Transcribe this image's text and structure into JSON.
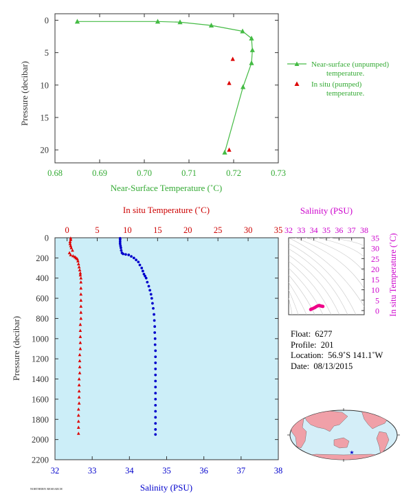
{
  "chart_data": [
    {
      "type": "line",
      "xlabel": "Near-Surface Temperature (˚C)",
      "ylabel": "Pressure (decibar)",
      "xlim": [
        0.68,
        0.73
      ],
      "ylim": [
        22,
        -1
      ],
      "x_ticks": [
        "0.68",
        "0.69",
        "0.70",
        "0.71",
        "0.72",
        "0.73"
      ],
      "y_ticks": [
        "0",
        "5",
        "10",
        "15",
        "20"
      ],
      "color_unpumped": "#44bb44",
      "color_pumped": "#dd0000",
      "series": [
        {
          "name": "Near-surface (unpumped) temperature.",
          "marker": "triangle-line",
          "points": [
            [
              0.685,
              0.2
            ],
            [
              0.703,
              0.2
            ],
            [
              0.708,
              0.3
            ],
            [
              0.715,
              0.8
            ],
            [
              0.722,
              1.7
            ],
            [
              0.724,
              2.8
            ],
            [
              0.7242,
              4.6
            ],
            [
              0.724,
              6.6
            ],
            [
              0.7221,
              10.3
            ],
            [
              0.718,
              20.4
            ]
          ]
        },
        {
          "name": "In situ (pumped) temperature.",
          "marker": "triangle",
          "points": [
            [
              0.7198,
              6.0
            ],
            [
              0.719,
              9.7
            ],
            [
              0.719,
              20.0
            ]
          ]
        }
      ],
      "legend": [
        "Near-surface (unpumped)",
        "temperature.",
        "In situ (pumped)",
        "temperature."
      ]
    },
    {
      "type": "scatter",
      "xlabel_top": "In situ Temperature (˚C)",
      "xlabel_bottom": "Salinity (PSU)",
      "ylabel": "Pressure (decibar)",
      "temp_lim": [
        -2,
        35
      ],
      "sal_lim": [
        32,
        38
      ],
      "ylim": [
        2200,
        0
      ],
      "temp_ticks": [
        "0",
        "5",
        "10",
        "15",
        "20",
        "25",
        "30",
        "35"
      ],
      "sal_ticks": [
        "32",
        "33",
        "34",
        "35",
        "36",
        "37",
        "38"
      ],
      "y_ticks": [
        "0",
        "200",
        "400",
        "600",
        "800",
        "1000",
        "1200",
        "1400",
        "1600",
        "1800",
        "2000",
        "2200"
      ],
      "temperature_color": "#dd0000",
      "salinity_color": "#0000cc",
      "background": "#cceef8",
      "temperature_profile": [
        [
          0.6,
          5
        ],
        [
          0.6,
          20
        ],
        [
          0.5,
          40
        ],
        [
          0.5,
          60
        ],
        [
          0.6,
          80
        ],
        [
          0.7,
          100
        ],
        [
          0.9,
          125
        ],
        [
          0.4,
          150
        ],
        [
          0.6,
          170
        ],
        [
          1.0,
          180
        ],
        [
          1.3,
          190
        ],
        [
          1.5,
          200
        ],
        [
          1.7,
          210
        ],
        [
          1.8,
          230
        ],
        [
          1.9,
          260
        ],
        [
          2.0,
          290
        ],
        [
          2.1,
          320
        ],
        [
          2.2,
          350
        ],
        [
          2.2,
          370
        ],
        [
          2.3,
          400
        ],
        [
          2.3,
          440
        ],
        [
          2.3,
          500
        ],
        [
          2.3,
          560
        ],
        [
          2.3,
          620
        ],
        [
          2.3,
          680
        ],
        [
          2.3,
          740
        ],
        [
          2.3,
          800
        ],
        [
          2.2,
          860
        ],
        [
          2.2,
          920
        ],
        [
          2.2,
          980
        ],
        [
          2.2,
          1040
        ],
        [
          2.2,
          1100
        ],
        [
          2.1,
          1160
        ],
        [
          2.1,
          1220
        ],
        [
          2.1,
          1280
        ],
        [
          2.1,
          1340
        ],
        [
          2.0,
          1400
        ],
        [
          2.0,
          1460
        ],
        [
          2.0,
          1520
        ],
        [
          2.0,
          1580
        ],
        [
          2.0,
          1640
        ],
        [
          1.9,
          1700
        ],
        [
          1.9,
          1760
        ],
        [
          1.9,
          1820
        ],
        [
          1.9,
          1880
        ],
        [
          1.9,
          1940
        ]
      ],
      "salinity_profile": [
        [
          33.75,
          5
        ],
        [
          33.75,
          20
        ],
        [
          33.75,
          40
        ],
        [
          33.75,
          60
        ],
        [
          33.76,
          80
        ],
        [
          33.77,
          100
        ],
        [
          33.78,
          125
        ],
        [
          33.8,
          150
        ],
        [
          33.83,
          160
        ],
        [
          33.9,
          165
        ],
        [
          33.98,
          170
        ],
        [
          34.05,
          185
        ],
        [
          34.12,
          200
        ],
        [
          34.18,
          220
        ],
        [
          34.24,
          240
        ],
        [
          34.28,
          270
        ],
        [
          34.33,
          300
        ],
        [
          34.36,
          330
        ],
        [
          34.39,
          360
        ],
        [
          34.42,
          380
        ],
        [
          34.45,
          400
        ],
        [
          34.48,
          440
        ],
        [
          34.52,
          480
        ],
        [
          34.55,
          520
        ],
        [
          34.58,
          560
        ],
        [
          34.6,
          600
        ],
        [
          34.62,
          650
        ],
        [
          34.64,
          700
        ],
        [
          34.66,
          760
        ],
        [
          34.67,
          820
        ],
        [
          34.68,
          880
        ],
        [
          34.68,
          940
        ],
        [
          34.69,
          1000
        ],
        [
          34.69,
          1060
        ],
        [
          34.7,
          1120
        ],
        [
          34.7,
          1180
        ],
        [
          34.7,
          1240
        ],
        [
          34.7,
          1300
        ],
        [
          34.7,
          1360
        ],
        [
          34.7,
          1420
        ],
        [
          34.7,
          1480
        ],
        [
          34.7,
          1540
        ],
        [
          34.7,
          1600
        ],
        [
          34.7,
          1660
        ],
        [
          34.7,
          1720
        ],
        [
          34.7,
          1780
        ],
        [
          34.7,
          1840
        ],
        [
          34.7,
          1900
        ],
        [
          34.7,
          1950
        ]
      ]
    },
    {
      "type": "scatter",
      "xlabel_top": "Salinity (PSU)",
      "ylabel": "In situ Temperature (˚C)",
      "xlim": [
        32,
        38
      ],
      "ylim": [
        -2,
        35
      ],
      "x_ticks": [
        "32",
        "33",
        "34",
        "35",
        "36",
        "37",
        "38"
      ],
      "y_ticks": [
        "0",
        "5",
        "10",
        "15",
        "20",
        "25",
        "30",
        "35"
      ],
      "color": "#ee0088",
      "axis_color": "#cc00cc",
      "points": [
        [
          33.75,
          0.5
        ],
        [
          33.8,
          0.7
        ],
        [
          33.9,
          0.9
        ],
        [
          34.0,
          1.2
        ],
        [
          34.1,
          1.5
        ],
        [
          34.2,
          1.9
        ],
        [
          34.3,
          2.2
        ],
        [
          34.4,
          2.4
        ],
        [
          34.45,
          2.4
        ],
        [
          34.5,
          2.3
        ],
        [
          34.55,
          2.2
        ],
        [
          34.6,
          2.1
        ],
        [
          34.65,
          2.1
        ],
        [
          34.7,
          2.0
        ],
        [
          34.72,
          2.0
        ]
      ]
    }
  ],
  "float_info": {
    "float_label": "Float:",
    "float_value": "6277",
    "profile_label": "Profile:",
    "profile_value": "201",
    "location_label": "Location:",
    "location_value": "56.9˚S  141.1˚W",
    "date_label": "Date:",
    "date_value": "08/13/2015"
  },
  "map": {
    "land_color": "#f0a0a8",
    "ocean_color": "#d4eef8",
    "marker": "star",
    "marker_color": "#0000cc"
  },
  "footer": {
    "credit_text": "NORTHERN RESEARCH"
  }
}
